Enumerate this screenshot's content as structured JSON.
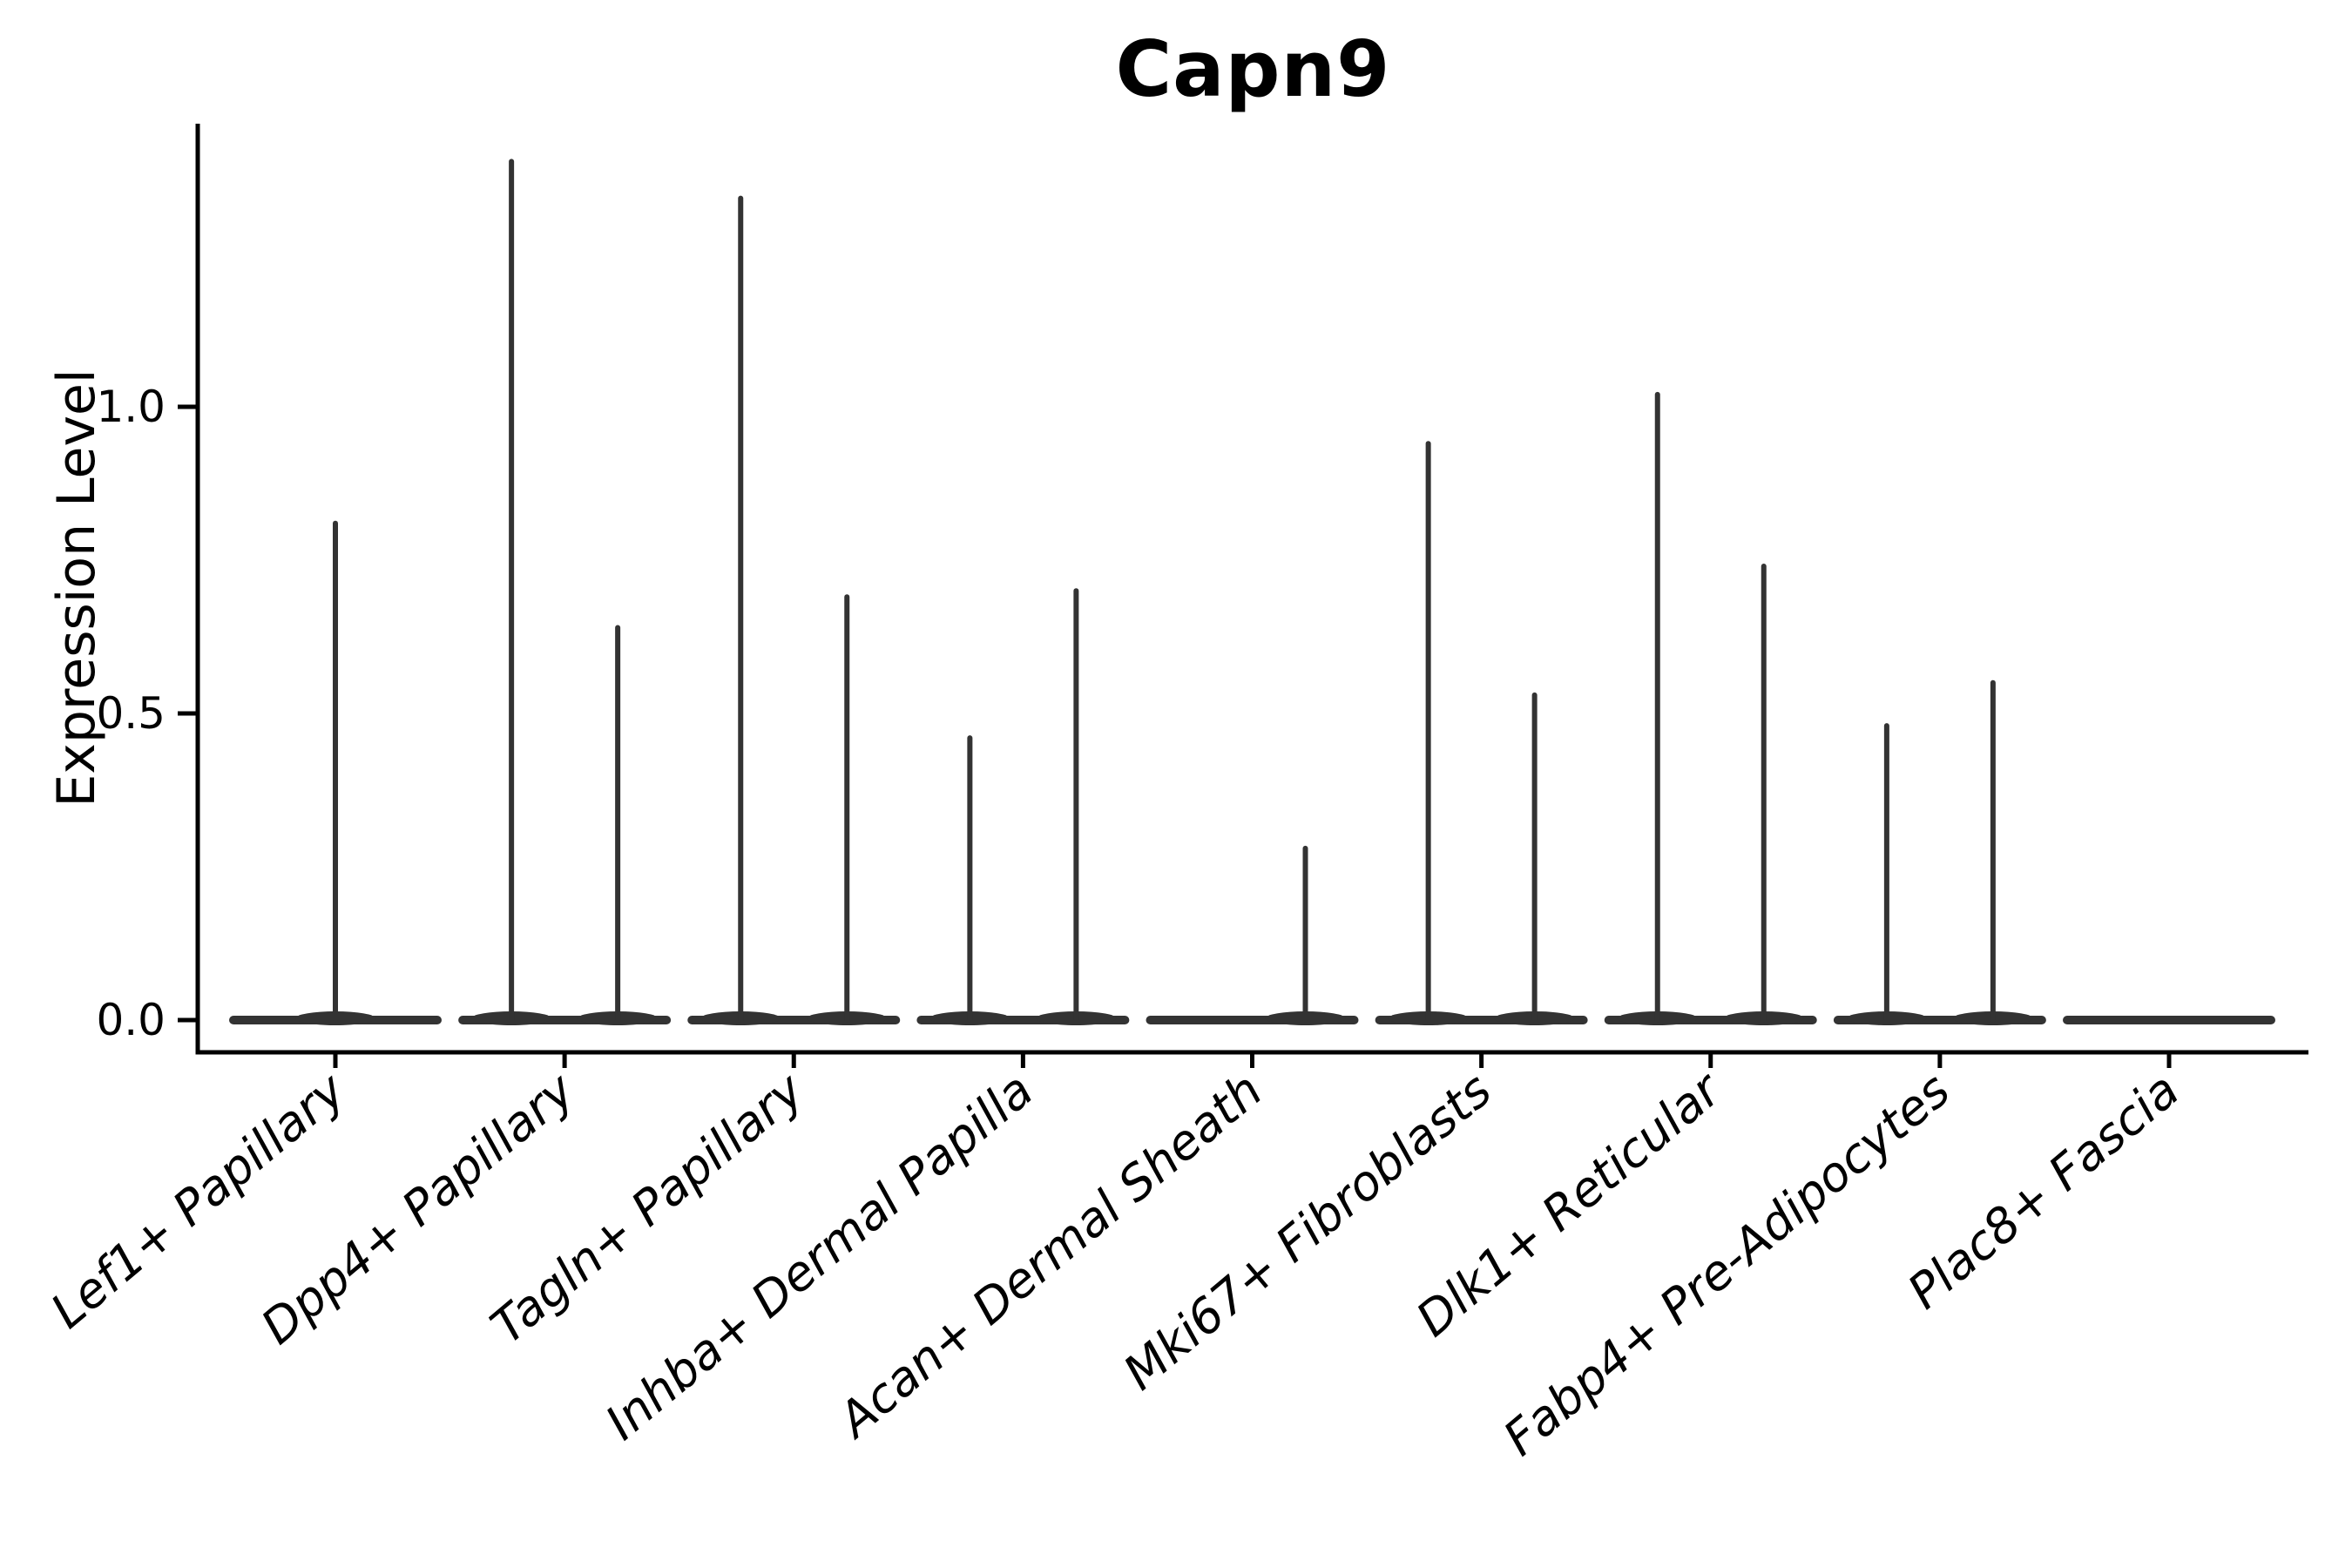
{
  "figure": {
    "background": "#ffffff"
  },
  "chart_data": {
    "type": "violin",
    "title": "Capn9",
    "ylabel": "Expression Level",
    "xlabel": "",
    "grid": false,
    "legend": "none",
    "ylim": [
      -0.05,
      1.46
    ],
    "yticks": [
      0.0,
      0.5,
      1.0
    ],
    "ytick_labels": [
      "0.0",
      "0.5",
      "1.0"
    ],
    "categories": [
      "Lef1+ Papillary",
      "Dpp4+ Papillary",
      "Tagln+ Papillary",
      "Inhba+ Dermal Papilla",
      "Acan+ Dermal Sheath",
      "Mki67+ Fibroblasts",
      "Dlk1+ Reticular",
      "Fabp4+ Pre-Adipocytes",
      "Plac8+ Fascia"
    ],
    "violins": [
      {
        "category": "Lef1+ Papillary",
        "body_at_zero": true,
        "spikes": [
          {
            "position": "center",
            "max": 0.81
          }
        ]
      },
      {
        "category": "Dpp4+ Papillary",
        "body_at_zero": true,
        "spikes": [
          {
            "position": "left",
            "max": 1.4
          },
          {
            "position": "right",
            "max": 0.64
          }
        ]
      },
      {
        "category": "Tagln+ Papillary",
        "body_at_zero": true,
        "spikes": [
          {
            "position": "left",
            "max": 1.34
          },
          {
            "position": "right",
            "max": 0.69
          }
        ]
      },
      {
        "category": "Inhba+ Dermal Papilla",
        "body_at_zero": true,
        "spikes": [
          {
            "position": "left",
            "max": 0.46
          },
          {
            "position": "right",
            "max": 0.7
          }
        ]
      },
      {
        "category": "Acan+ Dermal Sheath",
        "body_at_zero": true,
        "spikes": [
          {
            "position": "right",
            "max": 0.28
          }
        ]
      },
      {
        "category": "Mki67+ Fibroblasts",
        "body_at_zero": true,
        "spikes": [
          {
            "position": "left",
            "max": 0.94
          },
          {
            "position": "right",
            "max": 0.53
          }
        ]
      },
      {
        "category": "Dlk1+ Reticular",
        "body_at_zero": true,
        "spikes": [
          {
            "position": "left",
            "max": 1.02
          },
          {
            "position": "right",
            "max": 0.74
          }
        ]
      },
      {
        "category": "Fabp4+ Pre-Adipocytes",
        "body_at_zero": true,
        "spikes": [
          {
            "position": "left",
            "max": 0.48
          },
          {
            "position": "right",
            "max": 0.55
          }
        ]
      },
      {
        "category": "Plac8+ Fascia",
        "body_at_zero": true,
        "spikes": []
      }
    ],
    "colors": {
      "violin": "#333333",
      "axis": "#000000",
      "text": "#000000",
      "background": "#ffffff"
    }
  }
}
